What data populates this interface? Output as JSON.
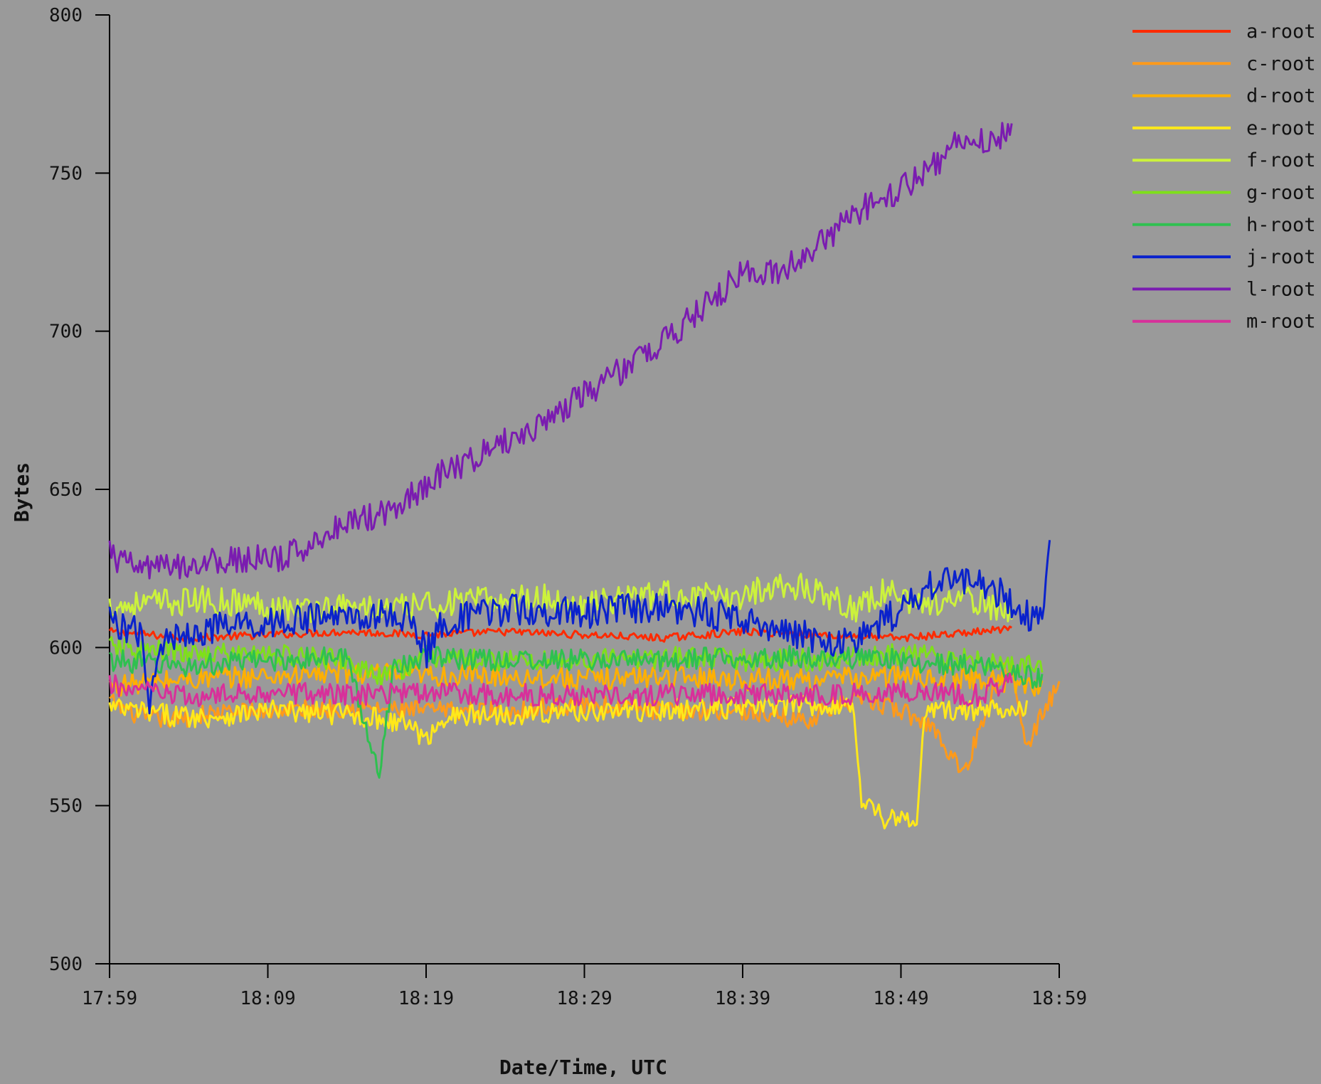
{
  "chart_data": {
    "type": "line",
    "title": "",
    "xlabel": "Date/Time, UTC",
    "ylabel": "Bytes",
    "ylim": [
      500,
      800
    ],
    "yticks": [
      500,
      550,
      600,
      650,
      700,
      750,
      800
    ],
    "x_tick_labels": [
      "17:59",
      "18:09",
      "18:19",
      "18:29",
      "18:39",
      "18:49",
      "18:59"
    ],
    "xlim_minutes": [
      0,
      60
    ],
    "grid": false,
    "legend_position": "top-right",
    "series": [
      {
        "name": "a-root",
        "color": "#ff2a00",
        "points": [
          [
            0,
            605
          ],
          [
            5,
            603
          ],
          [
            10,
            604
          ],
          [
            15,
            605
          ],
          [
            20,
            604
          ],
          [
            25,
            605
          ],
          [
            30,
            604
          ],
          [
            35,
            603
          ],
          [
            40,
            605
          ],
          [
            45,
            604
          ],
          [
            50,
            603
          ],
          [
            55,
            605
          ],
          [
            57,
            606
          ]
        ]
      },
      {
        "name": "c-root",
        "color": "#ff9a1a",
        "points": [
          [
            0,
            583
          ],
          [
            2,
            578
          ],
          [
            4,
            577
          ],
          [
            6,
            579
          ],
          [
            10,
            580
          ],
          [
            15,
            581
          ],
          [
            20,
            580
          ],
          [
            25,
            580
          ],
          [
            30,
            582
          ],
          [
            35,
            580
          ],
          [
            40,
            580
          ],
          [
            44,
            577
          ],
          [
            46,
            582
          ],
          [
            48,
            583
          ],
          [
            50,
            580
          ],
          [
            52,
            575
          ],
          [
            54,
            560
          ],
          [
            55,
            575
          ],
          [
            56,
            588
          ],
          [
            57,
            596
          ],
          [
            58,
            568
          ],
          [
            59,
            580
          ],
          [
            60,
            588
          ]
        ]
      },
      {
        "name": "d-root",
        "color": "#ffb000",
        "points": [
          [
            0,
            588
          ],
          [
            5,
            590
          ],
          [
            10,
            591
          ],
          [
            15,
            592
          ],
          [
            20,
            591
          ],
          [
            25,
            591
          ],
          [
            30,
            590
          ],
          [
            35,
            591
          ],
          [
            40,
            590
          ],
          [
            45,
            590
          ],
          [
            50,
            591
          ],
          [
            55,
            590
          ],
          [
            59,
            588
          ]
        ]
      },
      {
        "name": "e-root",
        "color": "#ffe81a",
        "points": [
          [
            0,
            581
          ],
          [
            3,
            579
          ],
          [
            6,
            578
          ],
          [
            10,
            580
          ],
          [
            15,
            579
          ],
          [
            19,
            576
          ],
          [
            20,
            570
          ],
          [
            21,
            578
          ],
          [
            25,
            579
          ],
          [
            30,
            580
          ],
          [
            35,
            580
          ],
          [
            40,
            581
          ],
          [
            45,
            582
          ],
          [
            47,
            581
          ],
          [
            47.5,
            553
          ],
          [
            49,
            546
          ],
          [
            51,
            545
          ],
          [
            51.5,
            580
          ],
          [
            55,
            580
          ],
          [
            58,
            582
          ]
        ]
      },
      {
        "name": "f-root",
        "color": "#ccf23c",
        "points": [
          [
            0,
            613
          ],
          [
            3,
            614
          ],
          [
            6,
            615
          ],
          [
            9,
            614
          ],
          [
            12,
            612
          ],
          [
            15,
            613
          ],
          [
            18,
            612
          ],
          [
            21,
            614
          ],
          [
            24,
            615
          ],
          [
            27,
            616
          ],
          [
            30,
            613
          ],
          [
            33,
            616
          ],
          [
            36,
            617
          ],
          [
            39,
            615
          ],
          [
            42,
            620
          ],
          [
            45,
            618
          ],
          [
            47,
            612
          ],
          [
            49,
            618
          ],
          [
            51,
            614
          ],
          [
            54,
            615
          ],
          [
            57,
            612
          ]
        ]
      },
      {
        "name": "g-root",
        "color": "#7ee01a",
        "points": [
          [
            0,
            600
          ],
          [
            5,
            598
          ],
          [
            10,
            598
          ],
          [
            15,
            596
          ],
          [
            17,
            590
          ],
          [
            20,
            597
          ],
          [
            25,
            596
          ],
          [
            30,
            596
          ],
          [
            35,
            597
          ],
          [
            40,
            596
          ],
          [
            45,
            596
          ],
          [
            50,
            598
          ],
          [
            55,
            596
          ],
          [
            59,
            594
          ]
        ]
      },
      {
        "name": "h-root",
        "color": "#2fc050",
        "points": [
          [
            0,
            596
          ],
          [
            5,
            594
          ],
          [
            10,
            596
          ],
          [
            15,
            597
          ],
          [
            17,
            560
          ],
          [
            18,
            595
          ],
          [
            20,
            597
          ],
          [
            25,
            596
          ],
          [
            30,
            596
          ],
          [
            35,
            596
          ],
          [
            40,
            597
          ],
          [
            45,
            597
          ],
          [
            50,
            596
          ],
          [
            55,
            594
          ],
          [
            59,
            590
          ]
        ]
      },
      {
        "name": "j-root",
        "color": "#0a22cc",
        "points": [
          [
            0,
            609
          ],
          [
            2,
            604
          ],
          [
            2.5,
            578
          ],
          [
            3,
            600
          ],
          [
            5,
            605
          ],
          [
            10,
            608
          ],
          [
            15,
            610
          ],
          [
            19,
            610
          ],
          [
            20,
            598
          ],
          [
            21,
            608
          ],
          [
            25,
            612
          ],
          [
            30,
            611
          ],
          [
            35,
            613
          ],
          [
            40,
            609
          ],
          [
            44,
            604
          ],
          [
            46,
            600
          ],
          [
            48,
            605
          ],
          [
            50,
            612
          ],
          [
            52,
            620
          ],
          [
            54,
            622
          ],
          [
            56,
            618
          ],
          [
            58,
            610
          ],
          [
            59,
            612
          ],
          [
            59.5,
            640
          ]
        ]
      },
      {
        "name": "l-root",
        "color": "#7a1cb0",
        "points": [
          [
            0,
            630
          ],
          [
            1,
            626
          ],
          [
            3,
            625
          ],
          [
            6,
            627
          ],
          [
            9,
            628
          ],
          [
            11,
            628
          ],
          [
            13,
            634
          ],
          [
            15,
            640
          ],
          [
            17,
            642
          ],
          [
            19,
            648
          ],
          [
            21,
            655
          ],
          [
            23,
            660
          ],
          [
            25,
            665
          ],
          [
            27,
            670
          ],
          [
            29,
            677
          ],
          [
            31,
            683
          ],
          [
            33,
            690
          ],
          [
            35,
            697
          ],
          [
            37,
            705
          ],
          [
            39,
            714
          ],
          [
            40,
            718
          ],
          [
            42,
            718
          ],
          [
            44,
            725
          ],
          [
            46,
            732
          ],
          [
            48,
            740
          ],
          [
            50,
            745
          ],
          [
            52,
            752
          ],
          [
            54,
            762
          ],
          [
            56,
            760
          ],
          [
            57,
            764
          ]
        ]
      },
      {
        "name": "m-root",
        "color": "#d8309a",
        "points": [
          [
            0,
            588
          ],
          [
            5,
            584
          ],
          [
            10,
            586
          ],
          [
            15,
            585
          ],
          [
            20,
            586
          ],
          [
            25,
            585
          ],
          [
            30,
            585
          ],
          [
            35,
            585
          ],
          [
            40,
            585
          ],
          [
            45,
            585
          ],
          [
            50,
            586
          ],
          [
            55,
            585
          ],
          [
            57,
            590
          ]
        ]
      }
    ]
  }
}
